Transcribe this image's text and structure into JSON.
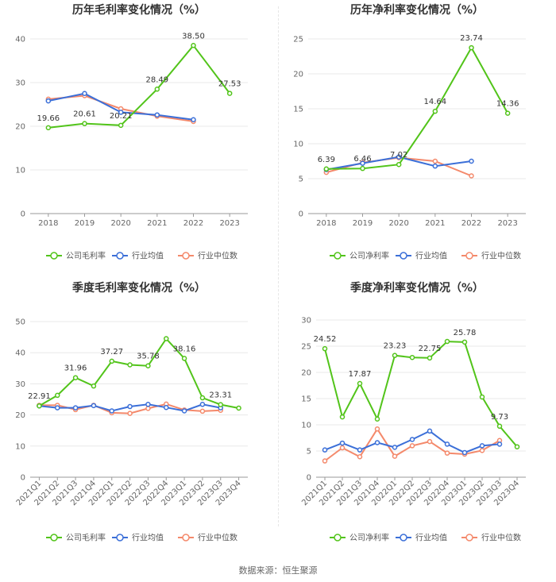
{
  "source": "数据来源：恒生聚源",
  "colors": {
    "company": "#52c41a",
    "avg": "#3b6fd8",
    "median": "#f4896b",
    "grid": "#e8e8e8",
    "axis": "#999999"
  },
  "chart_data": [
    {
      "type": "line",
      "title": "历年毛利率变化情况（%）",
      "categories": [
        "2018",
        "2019",
        "2020",
        "2021",
        "2022",
        "2023"
      ],
      "ylim": [
        0,
        40
      ],
      "yticks": [
        0,
        10,
        20,
        30,
        40
      ],
      "grid": true,
      "legend_position": "bottom",
      "series": [
        {
          "name": "公司毛利率",
          "values": [
            19.66,
            20.61,
            20.21,
            28.49,
            38.5,
            27.53
          ],
          "labels": [
            "19.66",
            "20.61",
            "20.21",
            "28.49",
            "38.50",
            "27.53"
          ]
        },
        {
          "name": "行业均值",
          "values": [
            25.8,
            27.5,
            23.2,
            22.6,
            21.5,
            null
          ]
        },
        {
          "name": "行业中位数",
          "values": [
            26.2,
            27.0,
            24.0,
            22.3,
            21.1,
            null
          ]
        }
      ]
    },
    {
      "type": "line",
      "title": "历年净利率变化情况（%）",
      "categories": [
        "2018",
        "2019",
        "2020",
        "2021",
        "2022",
        "2023"
      ],
      "ylim": [
        0,
        25
      ],
      "yticks": [
        0,
        5,
        10,
        15,
        20,
        25
      ],
      "grid": true,
      "legend_position": "bottom",
      "series": [
        {
          "name": "公司净利率",
          "values": [
            6.39,
            6.46,
            7.02,
            14.64,
            23.74,
            14.36
          ],
          "labels": [
            "6.39",
            "6.46",
            "7.02",
            "14.64",
            "23.74",
            "14.36"
          ]
        },
        {
          "name": "行业均值",
          "values": [
            6.3,
            7.2,
            8.1,
            6.8,
            7.5,
            null
          ]
        },
        {
          "name": "行业中位数",
          "values": [
            5.9,
            7.3,
            8.0,
            7.5,
            5.4,
            null
          ]
        }
      ]
    },
    {
      "type": "line",
      "title": "季度毛利率变化情况（%）",
      "categories": [
        "2021Q1",
        "2021Q2",
        "2021Q3",
        "2021Q4",
        "2022Q1",
        "2022Q2",
        "2022Q3",
        "2022Q4",
        "2023Q1",
        "2023Q2",
        "2023Q3",
        "2023Q4"
      ],
      "ylim": [
        0,
        50
      ],
      "yticks": [
        0,
        10,
        20,
        30,
        40,
        50
      ],
      "grid": true,
      "legend_position": "bottom",
      "series": [
        {
          "name": "公司毛利率",
          "values": [
            22.91,
            26.3,
            31.96,
            29.3,
            37.27,
            36.1,
            35.78,
            44.5,
            38.16,
            25.5,
            23.31,
            22.2
          ],
          "labels": [
            "22.91",
            "",
            "31.96",
            "",
            "37.27",
            "",
            "35.78",
            "",
            "38.16",
            "",
            "23.31",
            ""
          ]
        },
        {
          "name": "行业均值",
          "values": [
            22.9,
            22.3,
            22.3,
            23.0,
            21.3,
            22.7,
            23.4,
            22.4,
            21.3,
            23.4,
            22.3,
            null
          ]
        },
        {
          "name": "行业中位数",
          "values": [
            23.1,
            23.1,
            21.7,
            23.1,
            20.7,
            20.5,
            22.1,
            23.5,
            21.6,
            21.2,
            21.5,
            null
          ]
        }
      ]
    },
    {
      "type": "line",
      "title": "季度净利率变化情况（%）",
      "categories": [
        "2021Q1",
        "2021Q2",
        "2021Q3",
        "2021Q4",
        "2022Q1",
        "2022Q2",
        "2022Q3",
        "2022Q4",
        "2023Q1",
        "2023Q2",
        "2023Q3",
        "2023Q4"
      ],
      "ylim": [
        0,
        30
      ],
      "yticks": [
        0,
        5,
        10,
        15,
        20,
        25,
        30
      ],
      "grid": true,
      "legend_position": "bottom",
      "series": [
        {
          "name": "公司净利率",
          "values": [
            24.52,
            11.5,
            17.87,
            11.1,
            23.23,
            22.85,
            22.75,
            25.9,
            25.78,
            15.3,
            9.73,
            5.8
          ],
          "labels": [
            "24.52",
            "",
            "17.87",
            "",
            "23.23",
            "",
            "22.75",
            "",
            "25.78",
            "",
            "9.73",
            ""
          ]
        },
        {
          "name": "行业均值",
          "values": [
            5.2,
            6.5,
            5.2,
            6.6,
            5.7,
            7.2,
            8.8,
            6.3,
            4.7,
            6.0,
            6.3,
            null
          ]
        },
        {
          "name": "行业中位数",
          "values": [
            3.1,
            5.6,
            3.9,
            9.2,
            4.0,
            6.0,
            6.8,
            4.6,
            4.4,
            5.1,
            7.0,
            null
          ]
        }
      ]
    }
  ]
}
